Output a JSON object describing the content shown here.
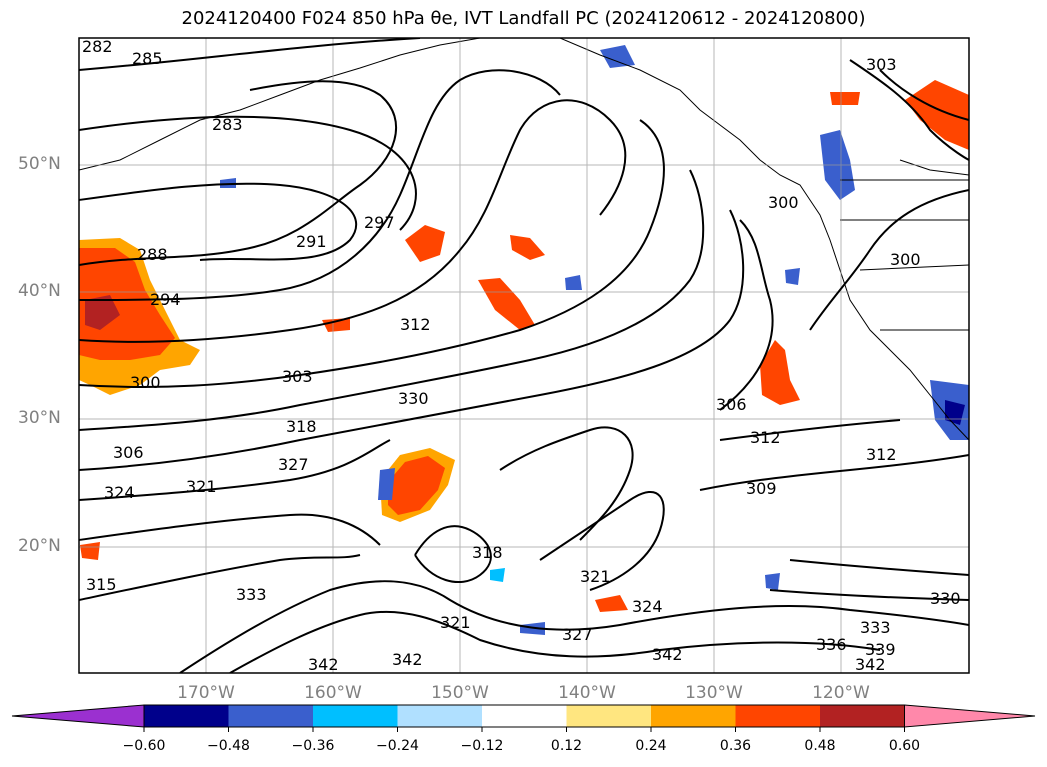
{
  "title": "2024120400 F024 850 hPa θe, IVT Landfall PC (2024120612 - 2024120800)",
  "map": {
    "lat_labels": [
      "50°N",
      "40°N",
      "30°N",
      "20°N"
    ],
    "lon_labels": [
      "170°W",
      "160°W",
      "150°W",
      "140°W",
      "130°W",
      "120°W"
    ],
    "contour_labels": [
      "282",
      "285",
      "283",
      "288",
      "294",
      "291",
      "297",
      "300",
      "303",
      "306",
      "312",
      "318",
      "324",
      "321",
      "327",
      "330",
      "315",
      "333",
      "336",
      "342",
      "309",
      "339",
      "300",
      "303"
    ],
    "grid": true
  },
  "colorbar": {
    "ticks": [
      "−0.60",
      "−0.48",
      "−0.36",
      "−0.24",
      "−0.12",
      "0.12",
      "0.24",
      "0.36",
      "0.48",
      "0.60"
    ],
    "colors": [
      "#9b30d0",
      "#00008b",
      "#3a5fcd",
      "#00bfff",
      "#b0e0ff",
      "#ffffff",
      "#ffe680",
      "#ffa500",
      "#ff4500",
      "#b22222",
      "#ff88aa"
    ]
  }
}
